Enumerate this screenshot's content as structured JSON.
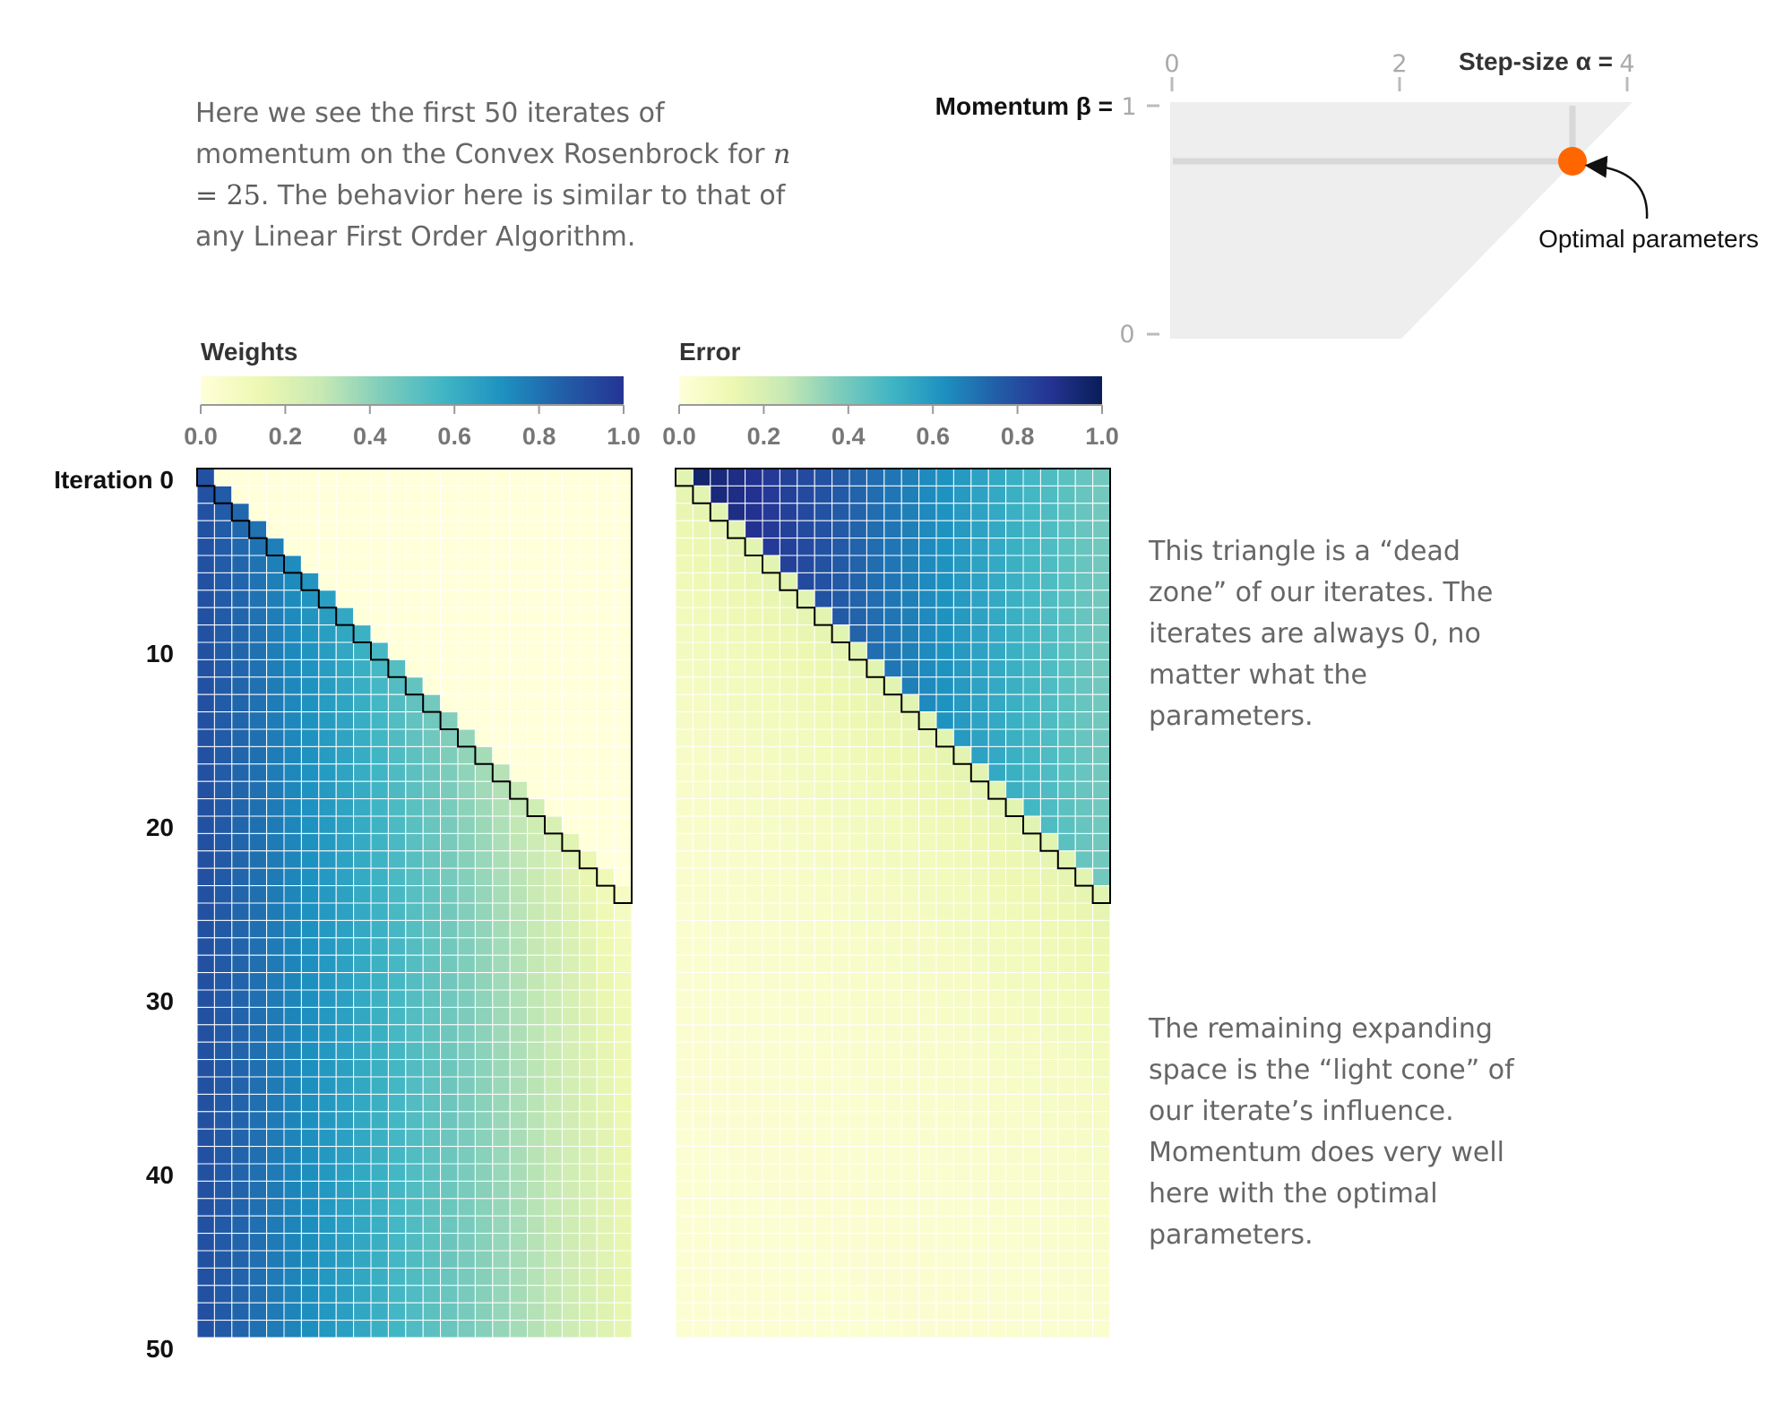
{
  "intro": {
    "before": "Here we see the first 50 iterates of momentum on the Convex Rosenbrock for",
    "math_var": "n",
    "math_eq": " = 25",
    "after": ". The behavior here is similar to that of any Linear First Order Algorithm."
  },
  "notes": {
    "dead_zone": "This triangle is a “dead zone” of our iterates. The iterates are always 0, no matter what the parameters.",
    "light_cone": "The remaining expanding space is the “light cone” of our iterate’s influence. Momentum does very well here with the optimal parameters."
  },
  "param_plot": {
    "xlabel": "Step-size α =",
    "ylabel": "Momentum β =",
    "x_ticks": [
      "0",
      "2",
      "4"
    ],
    "y_ticks": [
      "1",
      "0"
    ],
    "xlim": [
      0,
      4
    ],
    "ylim": [
      0,
      1
    ],
    "optimal_alpha": 3.5,
    "optimal_beta": 0.75,
    "optimal_label": "Optimal parameters",
    "colors": {
      "region": "#eeeeee",
      "marker": "#ff6600",
      "guide": "#d8d8d8",
      "tick": "#bbbbbb",
      "tick_text": "#aaaaaa"
    }
  },
  "colorbars": [
    {
      "title": "Weights",
      "ticks": [
        "0.0",
        "0.2",
        "0.4",
        "0.6",
        "0.8",
        "1.0"
      ],
      "stops": [
        "#ffffd9",
        "#edf8b1",
        "#c7e9b4",
        "#7fcdbb",
        "#41b6c4",
        "#1d91c0",
        "#225ea8",
        "#253494"
      ]
    },
    {
      "title": "Error",
      "ticks": [
        "0.0",
        "0.2",
        "0.4",
        "0.6",
        "0.8",
        "1.0"
      ],
      "stops": [
        "#ffffd9",
        "#edf8b1",
        "#c7e9b4",
        "#7fcdbb",
        "#41b6c4",
        "#1d91c0",
        "#225ea8",
        "#253494",
        "#081d58"
      ]
    }
  ],
  "iteration_axis": {
    "first_label": "Iteration 0",
    "labels": [
      "10",
      "20",
      "30",
      "40",
      "50"
    ]
  },
  "chart_data": {
    "type": "heatmap",
    "panels": [
      "Weights",
      "Error"
    ],
    "rows": 50,
    "cols": 25,
    "iteration_range": [
      0,
      50
    ],
    "value_range": [
      0,
      1
    ],
    "dead_zone": "upper-right triangle above the diagonal (iteration < column index), value 0 for Weights",
    "weights_pattern": "high (~0.9) at column 0, decreasing toward ~0.1 at column 24 within the light cone",
    "error_pattern": "dead zone error ~1.0 at column 0 decreasing to ~0.4 at column 24; light cone error decays to ~0 with iterations"
  }
}
